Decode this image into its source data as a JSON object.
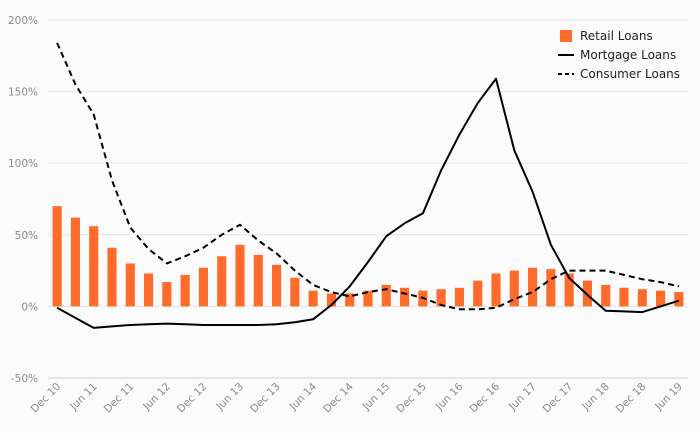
{
  "chart_data": {
    "type": "bar",
    "x": [
      "Dec 10",
      "Mar 11",
      "Jun 11",
      "Sep 11",
      "Dec 11",
      "Mar 12",
      "Jun 12",
      "Sep 12",
      "Dec 12",
      "Mar 13",
      "Jun 13",
      "Sep 13",
      "Dec 13",
      "Mar 14",
      "Jun 14",
      "Sep 14",
      "Dec 14",
      "Mar 15",
      "Jun 15",
      "Sep 15",
      "Dec 15",
      "Mar 16",
      "Jun 16",
      "Sep 16",
      "Dec 16",
      "Mar 17",
      "Jun 17",
      "Sep 17",
      "Dec 17",
      "Mar 18",
      "Jun 18",
      "Sep 18",
      "Dec 18",
      "Mar 19",
      "Jun 19"
    ],
    "x_tick_labels": [
      "Dec 10",
      "Jun 11",
      "Dec 11",
      "Jun 12",
      "Dec 12",
      "Jun 13",
      "Dec 13",
      "Jun 14",
      "Dec 14",
      "Jun 15",
      "Dec 15",
      "Jun 16",
      "Dec 16",
      "Jun 17",
      "Dec 17",
      "Jun 18",
      "Dec 18",
      "Jun 19"
    ],
    "y_tick_labels": [
      "200%",
      "150%",
      "100%",
      "50%",
      "0%",
      "-50%"
    ],
    "ylim": [
      -50,
      200
    ],
    "grid": true,
    "legend_position": "top-right",
    "series": [
      {
        "name": "Retail Loans",
        "kind": "bar",
        "color": "#ff6b2b",
        "values": [
          70,
          62,
          56,
          41,
          30,
          23,
          17,
          22,
          27,
          35,
          43,
          36,
          29,
          20,
          11,
          9,
          9,
          11,
          15,
          13,
          11,
          12,
          13,
          18,
          23,
          25,
          27,
          26,
          23,
          18,
          15,
          13,
          12,
          11,
          10
        ]
      },
      {
        "name": "Mortgage Loans",
        "kind": "line",
        "color": "#000000",
        "dash": "solid",
        "values": [
          -1,
          -8,
          -15,
          -14,
          -13,
          -12.5,
          -12,
          -12.5,
          -13,
          -13,
          -13,
          -13,
          -12.5,
          -11,
          -9,
          1,
          14,
          31,
          49,
          58,
          65,
          95,
          120,
          142,
          159,
          109,
          80,
          43,
          20,
          8,
          -3,
          -3.5,
          -4,
          0,
          4
        ]
      },
      {
        "name": "Consumer Loans",
        "kind": "line",
        "color": "#000000",
        "dash": "dashed",
        "values": [
          184,
          155,
          134,
          88,
          55,
          40,
          30,
          35,
          41,
          50,
          57,
          46,
          37,
          25,
          15,
          10,
          7,
          10,
          12,
          9,
          6,
          1,
          -2,
          -2,
          -1,
          5,
          10,
          19,
          25,
          25,
          25,
          22,
          19,
          17,
          14
        ]
      }
    ]
  }
}
